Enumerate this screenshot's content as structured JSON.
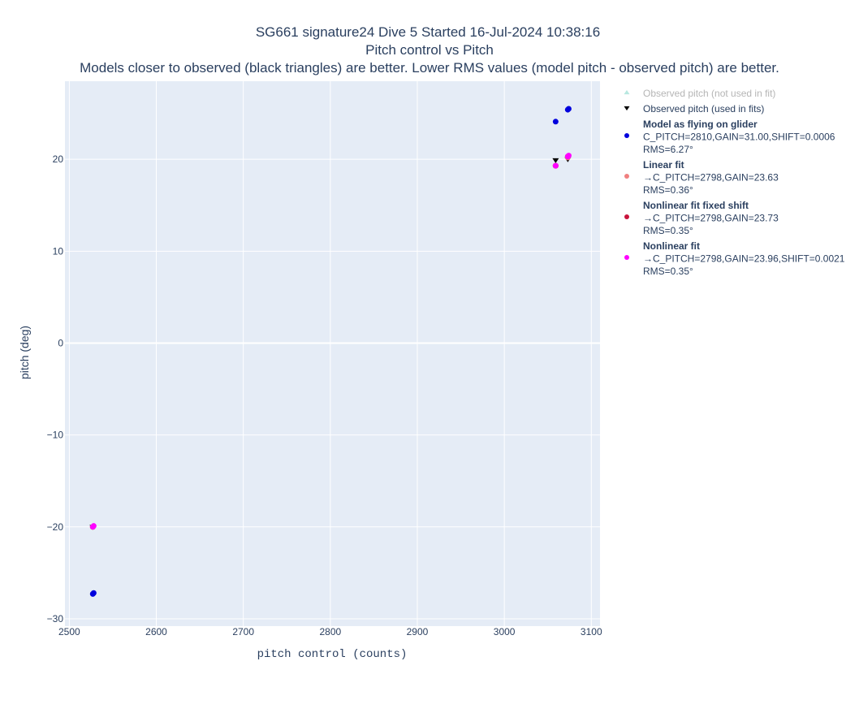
{
  "chart_data": {
    "type": "scatter",
    "title_lines": [
      "SG661 signature24 Dive 5 Started 16-Jul-2024 10:38:16",
      "Pitch control vs Pitch",
      "Models closer to observed (black triangles) are better. Lower RMS values (model pitch - observed pitch) are better."
    ],
    "xlabel": "pitch control (counts)",
    "ylabel": "pitch (deg)",
    "xlim": [
      2495,
      3110
    ],
    "ylim": [
      -30.8,
      28.5
    ],
    "x_ticks": [
      2500,
      2600,
      2700,
      2800,
      2900,
      3000,
      3100
    ],
    "x_tick_labels": [
      "2500",
      "2600",
      "2700",
      "2800",
      "2900",
      "3000",
      "3100"
    ],
    "y_ticks": [
      -30,
      -20,
      -10,
      0,
      10,
      20
    ],
    "y_tick_labels": [
      "−30",
      "−20",
      "−10",
      "0",
      "10",
      "20"
    ],
    "grid": true,
    "legend_position": "right",
    "series": [
      {
        "legend_lines": [
          "Observed pitch (not used in fit)"
        ],
        "marker": "triangle-up",
        "color": "#b8e8e0",
        "dim": true,
        "points": []
      },
      {
        "legend_lines": [
          "Observed pitch (used in fits)"
        ],
        "marker": "triangle-down",
        "color": "#000000",
        "points": [
          [
            3059,
            19.9
          ],
          [
            3073,
            20.0
          ],
          [
            2527,
            -20.0
          ]
        ]
      },
      {
        "legend_lines": [
          "Model as flying on glider",
          "C_PITCH=2810,GAIN=31.00,SHIFT=0.0006",
          "RMS=6.27°"
        ],
        "marker": "circle",
        "color": "#0000dd",
        "points": [
          [
            3059,
            24.1
          ],
          [
            3073,
            25.4
          ],
          [
            3074,
            25.5
          ],
          [
            2527,
            -27.3
          ],
          [
            2528,
            -27.2
          ]
        ]
      },
      {
        "legend_lines": [
          "Linear fit",
          "→C_PITCH=2798,GAIN=23.63",
          "RMS=0.36°"
        ],
        "marker": "circle",
        "color": "#f08080",
        "points": [
          [
            3059,
            19.3
          ],
          [
            3073,
            20.2
          ],
          [
            2527,
            -20.0
          ]
        ]
      },
      {
        "legend_lines": [
          "Nonlinear fit fixed shift",
          "→C_PITCH=2798,GAIN=23.73",
          "RMS=0.35°"
        ],
        "marker": "circle",
        "color": "#c8143c",
        "points": [
          [
            3059,
            19.3
          ],
          [
            3073,
            20.3
          ],
          [
            2527,
            -20.0
          ]
        ]
      },
      {
        "legend_lines": [
          "Nonlinear fit",
          "→C_PITCH=2798,GAIN=23.96,SHIFT=0.0021",
          "RMS=0.35°"
        ],
        "marker": "circle",
        "color": "#ff00ff",
        "points": [
          [
            3059,
            19.3
          ],
          [
            3073,
            20.3
          ],
          [
            3074,
            20.4
          ],
          [
            2527,
            -20.0
          ],
          [
            2528,
            -19.9
          ]
        ]
      }
    ]
  }
}
